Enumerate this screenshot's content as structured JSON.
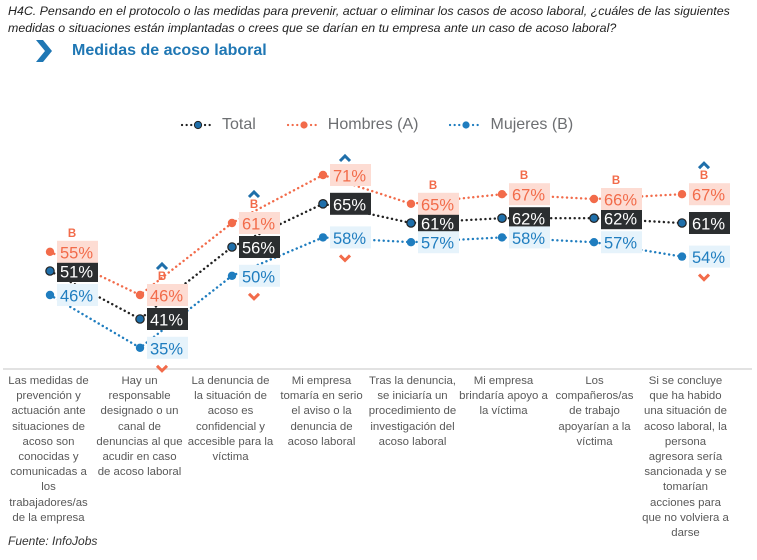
{
  "header": {
    "question": "H4C. Pensando en el protocolo o las medidas para prevenir, actuar o eliminar los casos de acoso laboral, ¿cuáles de las siguientes medidas o situaciones están implantadas o crees que se darían en tu empresa ante un caso de acoso laboral?",
    "title": "Medidas de acoso laboral",
    "title_icon": "chevron-right-icon"
  },
  "colors": {
    "total_marker": "#1f6faa",
    "total_line": "#222222",
    "total_box": "#2b2e30",
    "total_text": "#ffffff",
    "hombres": "#f26b4a",
    "hombres_box": "#fddcd3",
    "mujeres": "#1f7dbf",
    "mujeres_box": "#e6f3fb",
    "significance_up": "#1f6faa",
    "significance_down": "#f26b4a",
    "axis": "#d9d9d9",
    "title": "#1f77b4"
  },
  "chart_data": {
    "type": "line",
    "title": "Medidas de acoso laboral",
    "xlabel": "",
    "ylabel": "",
    "ylim": [
      30,
      75
    ],
    "grid": false,
    "legend_position": "top-center",
    "categories": [
      "Las medidas de prevención y actuación ante situaciones de acoso son conocidas y comunicadas a los trabajadores/as de la empresa",
      "Hay un responsable designado o un canal de denuncias al que acudir en caso de acoso laboral",
      "La denuncia de la situación de acoso es confidencial y accesible para la víctima",
      "Mi empresa tomaría en serio el aviso o la denuncia de acoso laboral",
      "Tras la denuncia, se iniciaría un procedimiento de investigación del acoso laboral",
      "Mi empresa brindaría apoyo a la víctima",
      "Los compañeros/as de trabajo apoyarían a la víctima",
      "Si se concluye que ha habido una situación de acoso laboral, la persona agresora sería sancionada y se tomarían acciones para que no volviera a darse"
    ],
    "series": [
      {
        "name": "Total",
        "key": "total",
        "values": [
          51,
          41,
          56,
          65,
          61,
          62,
          62,
          61
        ]
      },
      {
        "name": "Hombres (A)",
        "key": "hombres",
        "values": [
          55,
          46,
          61,
          71,
          65,
          67,
          66,
          67
        ]
      },
      {
        "name": "Mujeres (B)",
        "key": "mujeres",
        "values": [
          46,
          35,
          50,
          58,
          57,
          58,
          57,
          54
        ]
      }
    ],
    "value_suffix": "%",
    "significance": [
      {
        "letter": "B",
        "up_arrow": false,
        "down_arrow": false
      },
      {
        "letter": "B",
        "up_arrow": true,
        "down_arrow": true
      },
      {
        "letter": "B",
        "up_arrow": true,
        "down_arrow": true
      },
      {
        "letter": "",
        "up_arrow": true,
        "down_arrow": true
      },
      {
        "letter": "B",
        "up_arrow": false,
        "down_arrow": false
      },
      {
        "letter": "B",
        "up_arrow": false,
        "down_arrow": false
      },
      {
        "letter": "B",
        "up_arrow": false,
        "down_arrow": false
      },
      {
        "letter": "B",
        "up_arrow": true,
        "down_arrow": true
      }
    ]
  },
  "legend": [
    {
      "label": "Total",
      "key": "total"
    },
    {
      "label": "Hombres (A)",
      "key": "hombres"
    },
    {
      "label": "Mujeres (B)",
      "key": "mujeres"
    }
  ],
  "footer": {
    "source": "Fuente: InfoJobs"
  }
}
